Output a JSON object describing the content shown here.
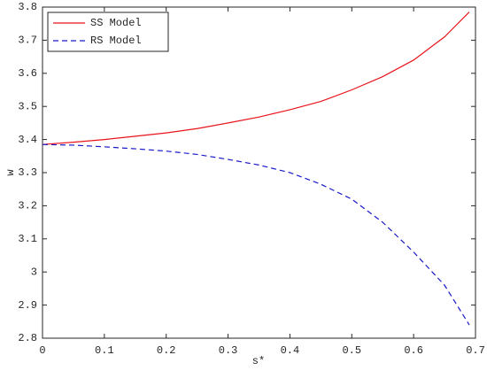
{
  "chart_data": {
    "type": "line",
    "x_label": "s*",
    "y_label": "w",
    "x": [
      0,
      0.05,
      0.1,
      0.15,
      0.2,
      0.25,
      0.3,
      0.35,
      0.4,
      0.45,
      0.5,
      0.55,
      0.6,
      0.65,
      0.69
    ],
    "series": [
      {
        "name": "SS Model",
        "color": "#e8141c",
        "dash": false,
        "values": [
          3.385,
          3.392,
          3.4,
          3.41,
          3.42,
          3.433,
          3.45,
          3.468,
          3.49,
          3.515,
          3.55,
          3.59,
          3.64,
          3.71,
          3.785
        ]
      },
      {
        "name": "RS Model",
        "color": "#1a1ac8",
        "dash": true,
        "values": [
          3.385,
          3.383,
          3.378,
          3.372,
          3.365,
          3.355,
          3.34,
          3.323,
          3.3,
          3.265,
          3.22,
          3.15,
          3.06,
          2.96,
          2.84
        ]
      }
    ],
    "xlim": [
      0,
      0.7
    ],
    "xticks": [
      0,
      0.1,
      0.2,
      0.3,
      0.4,
      0.5,
      0.6,
      0.7
    ],
    "ylim": [
      2.8,
      3.8
    ],
    "yticks": [
      2.8,
      2.9,
      3,
      3.1,
      3.2,
      3.3,
      3.4,
      3.5,
      3.6,
      3.7,
      3.8
    ],
    "grid": false,
    "legend": "upper-left"
  }
}
